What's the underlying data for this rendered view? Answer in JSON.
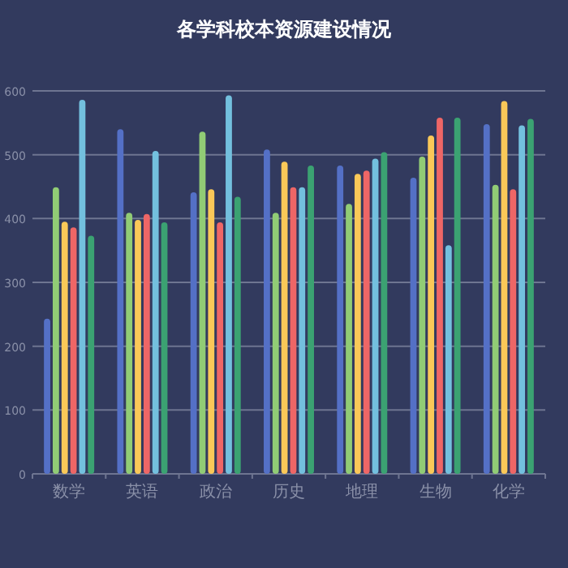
{
  "chart_data": {
    "type": "bar",
    "title": "各学科校本资源建设情况",
    "categories": [
      "数学",
      "英语",
      "政治",
      "历史",
      "地理",
      "生物",
      "化学"
    ],
    "series": [
      {
        "color": "#5470c6",
        "values": [
          243,
          540,
          441,
          508,
          483,
          464,
          548
        ]
      },
      {
        "color": "#91cc75",
        "values": [
          449,
          409,
          536,
          409,
          423,
          497,
          453
        ]
      },
      {
        "color": "#fac858",
        "values": [
          395,
          398,
          446,
          489,
          470,
          530,
          584
        ]
      },
      {
        "color": "#ee6666",
        "values": [
          386,
          407,
          394,
          449,
          475,
          558,
          446
        ]
      },
      {
        "color": "#73c0de",
        "values": [
          586,
          506,
          593,
          449,
          494,
          358,
          546
        ]
      },
      {
        "color": "#3ba272",
        "values": [
          373,
          394,
          434,
          483,
          504,
          558,
          556
        ]
      }
    ],
    "ylim": [
      0,
      600
    ],
    "yticks": [
      0,
      100,
      200,
      300,
      400,
      500,
      600
    ],
    "grid": "y"
  }
}
